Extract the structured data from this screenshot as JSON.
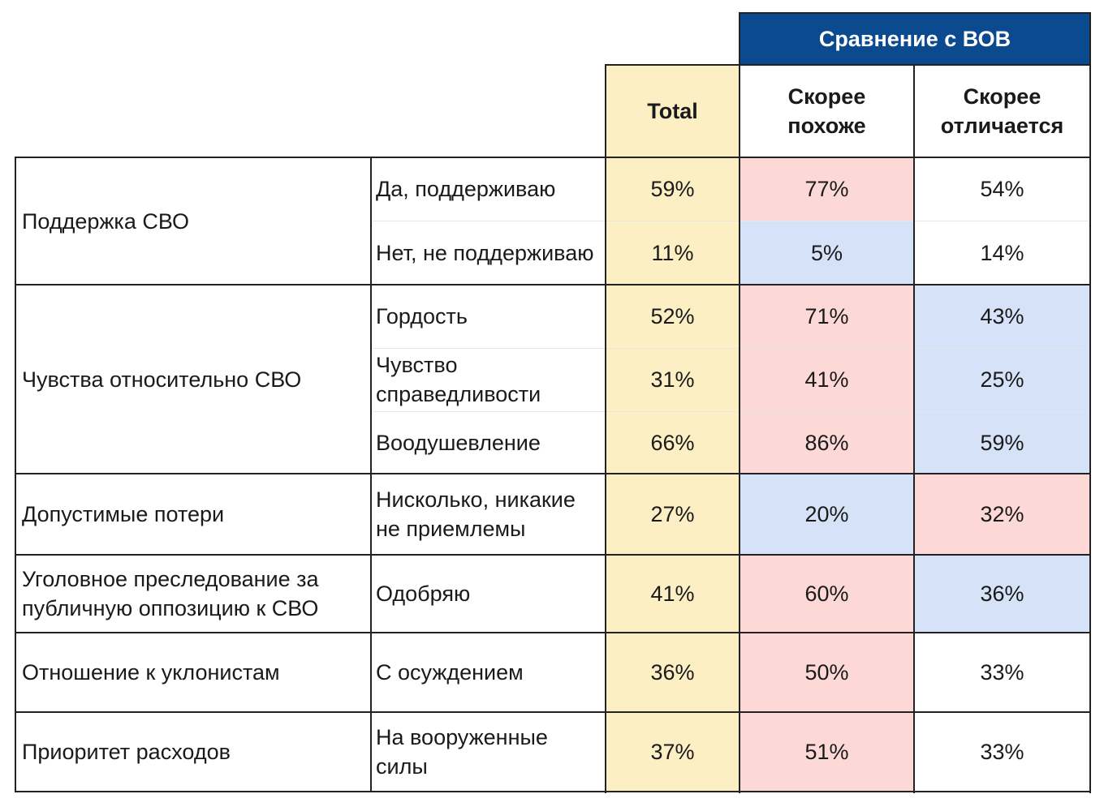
{
  "chart_data": {
    "type": "table",
    "group_header": "Сравнение с ВОВ",
    "columns": [
      "Total",
      "Скорее похоже",
      "Скорее отличается"
    ],
    "column_labels": {
      "total": "Total",
      "similar_line1": "Скорее",
      "similar_line2": "похоже",
      "different_line1": "Скорее",
      "different_line2": "отличается"
    },
    "groups": [
      {
        "label": "Поддержка СВО",
        "rows": [
          {
            "label": "Да, поддерживаю",
            "values": [
              "59%",
              "77%",
              "54%"
            ],
            "highlight": [
              "total",
              "red",
              "none"
            ]
          },
          {
            "label": "Нет, не поддерживаю",
            "values": [
              "11%",
              "5%",
              "14%"
            ],
            "highlight": [
              "total",
              "blue",
              "none"
            ]
          }
        ]
      },
      {
        "label": "Чувства относительно СВО",
        "rows": [
          {
            "label": "Гордость",
            "values": [
              "52%",
              "71%",
              "43%"
            ],
            "highlight": [
              "total",
              "red",
              "blue"
            ]
          },
          {
            "label": "Чувство справедливости",
            "values": [
              "31%",
              "41%",
              "25%"
            ],
            "highlight": [
              "total",
              "red",
              "blue"
            ]
          },
          {
            "label": "Воодушевление",
            "values": [
              "66%",
              "86%",
              "59%"
            ],
            "highlight": [
              "total",
              "red",
              "blue"
            ]
          }
        ]
      },
      {
        "label": "Допустимые потери",
        "rows": [
          {
            "label": "Нисколько, никакие не приемлемы",
            "values": [
              "27%",
              "20%",
              "32%"
            ],
            "highlight": [
              "total",
              "blue",
              "red"
            ]
          }
        ]
      },
      {
        "label": "Уголовное преследование за публичную оппозицию к СВО",
        "rows": [
          {
            "label": "Одобряю",
            "values": [
              "41%",
              "60%",
              "36%"
            ],
            "highlight": [
              "total",
              "red",
              "blue"
            ]
          }
        ]
      },
      {
        "label": "Отношение к уклонистам",
        "rows": [
          {
            "label": "С осуждением",
            "values": [
              "36%",
              "50%",
              "33%"
            ],
            "highlight": [
              "total",
              "red",
              "none"
            ]
          }
        ]
      },
      {
        "label": "Приоритет расходов",
        "rows": [
          {
            "label": "На вооруженные силы",
            "values": [
              "37%",
              "51%",
              "33%"
            ],
            "highlight": [
              "total",
              "red",
              "none"
            ]
          }
        ]
      }
    ],
    "colors": {
      "header_bg": "#0b4a8f",
      "header_text": "#ffffff",
      "total_bg": "#fdefc4",
      "red_bg": "#fcd9d6",
      "blue_bg": "#d5e2f8",
      "border": "#222222"
    }
  }
}
